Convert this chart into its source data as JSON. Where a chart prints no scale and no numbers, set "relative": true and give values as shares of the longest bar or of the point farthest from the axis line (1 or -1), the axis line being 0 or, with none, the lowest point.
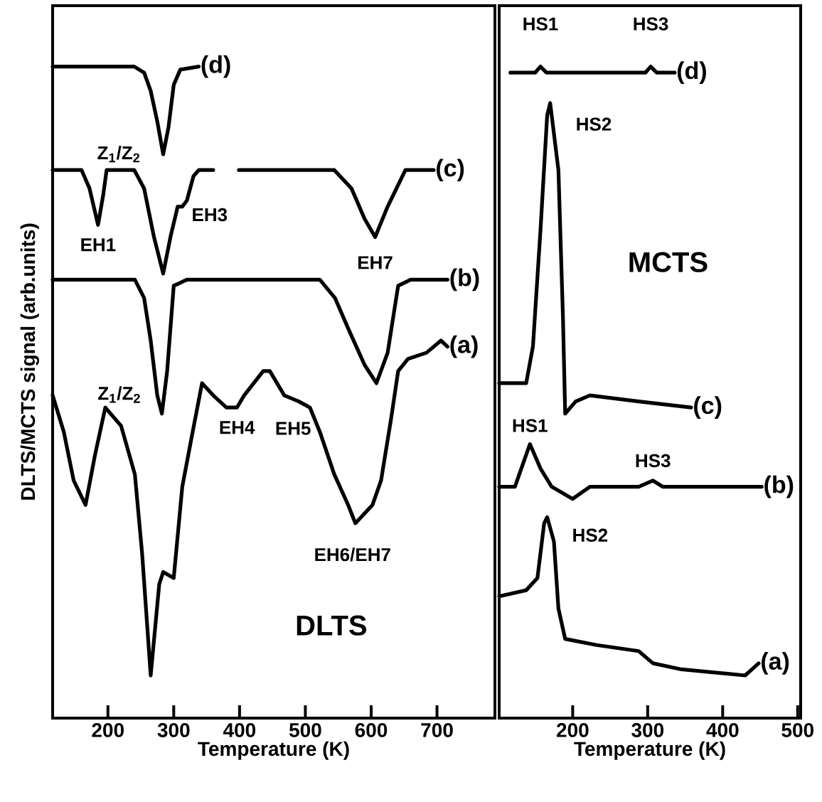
{
  "chart_data": [
    {
      "type": "line",
      "title": "DLTS",
      "xlabel": "Temperature (K)",
      "ylabel": "DLTS/MCTS signal (arb.units)",
      "relative": true,
      "xlim": [
        116,
        788
      ],
      "xticks": [
        200,
        300,
        400,
        500,
        600,
        700
      ],
      "series": [
        {
          "name": "(d)",
          "color": "#000000",
          "x": [
            116,
            240,
            255,
            265,
            275,
            284,
            292,
            300,
            310,
            338
          ],
          "values": [
            1.0,
            1.0,
            0.99,
            0.96,
            0.91,
            0.856,
            0.9,
            0.97,
            0.995,
            1.0
          ]
        },
        {
          "name": "(c)",
          "color": "#000000",
          "x": [
            116,
            160,
            172,
            185,
            193,
            198,
            240,
            255,
            270,
            284,
            295,
            306,
            313,
            320,
            330,
            338,
            360,
            380,
            399,
            544,
            570,
            590,
            606,
            625,
            652,
            695
          ],
          "values": [
            0.83,
            0.83,
            0.8,
            0.74,
            0.79,
            0.83,
            0.83,
            0.8,
            0.72,
            0.66,
            0.72,
            0.77,
            0.77,
            0.78,
            0.82,
            0.83,
            0.83,
            null,
            0.83,
            0.83,
            0.8,
            0.75,
            0.72,
            0.77,
            0.83,
            0.83
          ]
        },
        {
          "name": "(b)",
          "color": "#000000",
          "x": [
            116,
            241,
            255,
            265,
            275,
            282,
            290,
            300,
            320,
            522,
            545,
            565,
            590,
            608,
            625,
            641,
            660,
            716
          ],
          "values": [
            0.65,
            0.65,
            0.62,
            0.55,
            0.46,
            0.43,
            0.5,
            0.64,
            0.65,
            0.65,
            0.62,
            0.57,
            0.51,
            0.48,
            0.53,
            0.64,
            0.65,
            0.65
          ]
        },
        {
          "name": "(a)",
          "color": "#000000",
          "x": [
            116,
            133,
            148,
            166,
            180,
            196,
            220,
            241,
            252,
            265,
            278,
            284,
            300,
            313,
            327,
            343,
            360,
            380,
            396,
            407,
            436,
            446,
            468,
            490,
            507,
            522,
            544,
            565,
            576,
            602,
            615,
            630,
            641,
            656,
            684,
            706,
            716
          ],
          "values": [
            0.46,
            0.4,
            0.32,
            0.28,
            0.36,
            0.44,
            0.41,
            0.33,
            0.2,
            0.0,
            0.15,
            0.17,
            0.16,
            0.31,
            0.39,
            0.48,
            0.46,
            0.44,
            0.44,
            0.46,
            0.5,
            0.5,
            0.46,
            0.45,
            0.44,
            0.4,
            0.33,
            0.28,
            0.25,
            0.28,
            0.32,
            0.42,
            0.5,
            0.52,
            0.53,
            0.55,
            0.54
          ]
        }
      ],
      "annotations": [
        {
          "text": "Z$_{1}$/Z$_{2}$",
          "x": 275,
          "y": 0.91
        },
        {
          "text": "EH1",
          "x": 185,
          "y": 0.74
        },
        {
          "text": "EH3",
          "x": 320,
          "y": 0.78
        },
        {
          "text": "EH7",
          "x": 606,
          "y": 0.72
        },
        {
          "text": "Z$_{1}$/Z$_{2}$",
          "x": 265,
          "y": 0.55
        },
        {
          "text": "EH4",
          "x": 396,
          "y": 0.44
        },
        {
          "text": "EH5",
          "x": 490,
          "y": 0.45
        },
        {
          "text": "EH6/EH7",
          "x": 576,
          "y": 0.25
        }
      ]
    },
    {
      "type": "line",
      "title": "MCTS",
      "xlabel": "Temperature (K)",
      "relative": true,
      "xlim": [
        102,
        504
      ],
      "xticks": [
        200,
        300,
        400,
        500
      ],
      "series": [
        {
          "name": "(d)",
          "color": "#000000",
          "x": [
            117,
            150,
            157,
            165,
            297,
            304,
            312,
            336
          ],
          "values": [
            0.99,
            0.99,
            1.0,
            0.99,
            0.99,
            1.0,
            0.99,
            0.99
          ]
        },
        {
          "name": "(c)",
          "color": "#000000",
          "x": [
            102,
            138,
            147,
            157,
            166,
            170,
            181,
            187,
            190,
            204,
            223,
            288,
            358
          ],
          "values": [
            0.48,
            0.48,
            0.54,
            0.73,
            0.92,
            0.94,
            0.83,
            0.59,
            0.43,
            0.45,
            0.46,
            0.45,
            0.44
          ]
        },
        {
          "name": "(b)",
          "color": "#000000",
          "x": [
            102,
            123,
            143,
            157,
            172,
            200,
            223,
            288,
            307,
            320,
            383,
            452
          ],
          "values": [
            0.31,
            0.31,
            0.38,
            0.34,
            0.31,
            0.29,
            0.31,
            0.31,
            0.32,
            0.31,
            0.31,
            0.31
          ]
        },
        {
          "name": "(a)",
          "color": "#000000",
          "x": [
            102,
            138,
            153,
            162,
            166,
            175,
            181,
            190,
            232,
            288,
            307,
            345,
            430,
            448
          ],
          "values": [
            0.13,
            0.14,
            0.16,
            0.25,
            0.26,
            0.22,
            0.11,
            0.06,
            0.05,
            0.04,
            0.02,
            0.01,
            0.0,
            0.02
          ]
        }
      ],
      "annotations": [
        {
          "text": "HS1",
          "x": 157,
          "y": 1.0
        },
        {
          "text": "HS3",
          "x": 304,
          "y": 1.0
        },
        {
          "text": "HS2",
          "x": 175,
          "y": 0.84
        },
        {
          "text": "HS1",
          "x": 143,
          "y": 0.38
        },
        {
          "text": "HS3",
          "x": 307,
          "y": 0.32
        },
        {
          "text": "HS2",
          "x": 172,
          "y": 0.2
        }
      ]
    }
  ]
}
